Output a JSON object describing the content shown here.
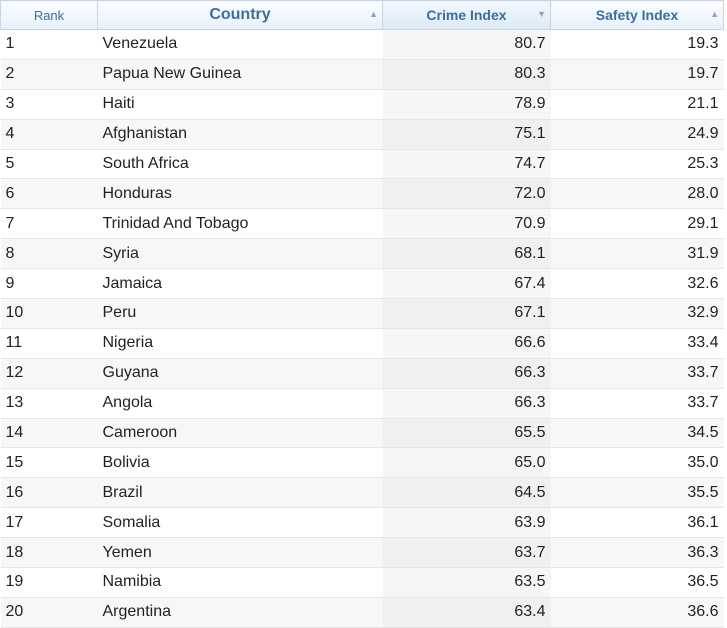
{
  "table": {
    "headers": {
      "rank": "Rank",
      "country": "Country",
      "crime_index": "Crime Index",
      "safety_index": "Safety Index"
    },
    "sort_icons": {
      "country": "▲",
      "crime_index": "▼",
      "safety_index": "▲"
    },
    "rows": [
      {
        "rank": "1",
        "country": "Venezuela",
        "crime": "80.7",
        "safety": "19.3"
      },
      {
        "rank": "2",
        "country": "Papua New Guinea",
        "crime": "80.3",
        "safety": "19.7"
      },
      {
        "rank": "3",
        "country": "Haiti",
        "crime": "78.9",
        "safety": "21.1"
      },
      {
        "rank": "4",
        "country": "Afghanistan",
        "crime": "75.1",
        "safety": "24.9"
      },
      {
        "rank": "5",
        "country": "South Africa",
        "crime": "74.7",
        "safety": "25.3"
      },
      {
        "rank": "6",
        "country": "Honduras",
        "crime": "72.0",
        "safety": "28.0"
      },
      {
        "rank": "7",
        "country": "Trinidad And Tobago",
        "crime": "70.9",
        "safety": "29.1"
      },
      {
        "rank": "8",
        "country": "Syria",
        "crime": "68.1",
        "safety": "31.9"
      },
      {
        "rank": "9",
        "country": "Jamaica",
        "crime": "67.4",
        "safety": "32.6"
      },
      {
        "rank": "10",
        "country": "Peru",
        "crime": "67.1",
        "safety": "32.9"
      },
      {
        "rank": "11",
        "country": "Nigeria",
        "crime": "66.6",
        "safety": "33.4"
      },
      {
        "rank": "12",
        "country": "Guyana",
        "crime": "66.3",
        "safety": "33.7"
      },
      {
        "rank": "13",
        "country": "Angola",
        "crime": "66.3",
        "safety": "33.7"
      },
      {
        "rank": "14",
        "country": "Cameroon",
        "crime": "65.5",
        "safety": "34.5"
      },
      {
        "rank": "15",
        "country": "Bolivia",
        "crime": "65.0",
        "safety": "35.0"
      },
      {
        "rank": "16",
        "country": "Brazil",
        "crime": "64.5",
        "safety": "35.5"
      },
      {
        "rank": "17",
        "country": "Somalia",
        "crime": "63.9",
        "safety": "36.1"
      },
      {
        "rank": "18",
        "country": "Yemen",
        "crime": "63.7",
        "safety": "36.3"
      },
      {
        "rank": "19",
        "country": "Namibia",
        "crime": "63.5",
        "safety": "36.5"
      },
      {
        "rank": "20",
        "country": "Argentina",
        "crime": "63.4",
        "safety": "36.6"
      }
    ]
  },
  "colors": {
    "header_text": "#3a6ea5",
    "header_border": "#c6d6e6",
    "row_alt": "#f7f7f7",
    "crime_col_bg": "#f0f0f0"
  }
}
